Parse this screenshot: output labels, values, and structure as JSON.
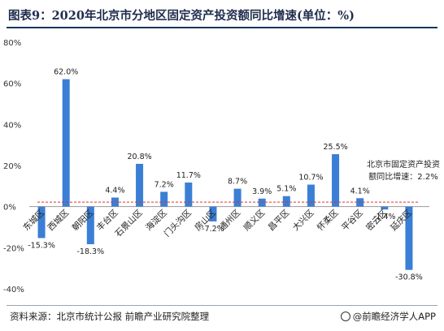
{
  "title": "图表9：2020年北京市分地区固定资产投资额同比增速(单位：%)",
  "source": "资料来源：北京市统计公报 前瞻产业研究院整理",
  "brand": "@前瞻经济学人APP",
  "annotation": {
    "line1": "北京市固定资产投资",
    "line2": "额同比增速：",
    "value_label": "2.2%"
  },
  "chart_data": {
    "type": "bar",
    "categories": [
      "东城区",
      "西城区",
      "朝阳区",
      "丰台区",
      "石景山区",
      "海淀区",
      "门头沟区",
      "房山区",
      "通州区",
      "顺义区",
      "昌平区",
      "大兴区",
      "怀柔区",
      "平谷区",
      "密云区",
      "延庆区"
    ],
    "values": [
      -15.3,
      62.0,
      -18.3,
      4.4,
      20.8,
      7.2,
      11.7,
      -7.2,
      8.7,
      3.9,
      5.1,
      10.7,
      25.5,
      4.1,
      -1.4,
      -30.8
    ],
    "value_labels": [
      "-15.3%",
      "62.0%",
      "-18.3%",
      "4.4%",
      "20.8%",
      "7.2%",
      "11.7%",
      "-7.2%",
      "8.7%",
      "3.9%",
      "5.1%",
      "10.7%",
      "25.5%",
      "4.1%",
      "-1.4%",
      "-30.8%"
    ],
    "reference_line": 2.2,
    "ylim": [
      -40,
      80
    ],
    "yticks": [
      -40,
      -20,
      0,
      20,
      40,
      60,
      80
    ],
    "ytick_labels": [
      "-40%",
      "-20%",
      "0%",
      "20%",
      "40%",
      "60%",
      "80%"
    ],
    "grid": false,
    "colors": {
      "bar": "#3a7fd5",
      "reference": "#e03030",
      "axis": "#999999"
    }
  }
}
